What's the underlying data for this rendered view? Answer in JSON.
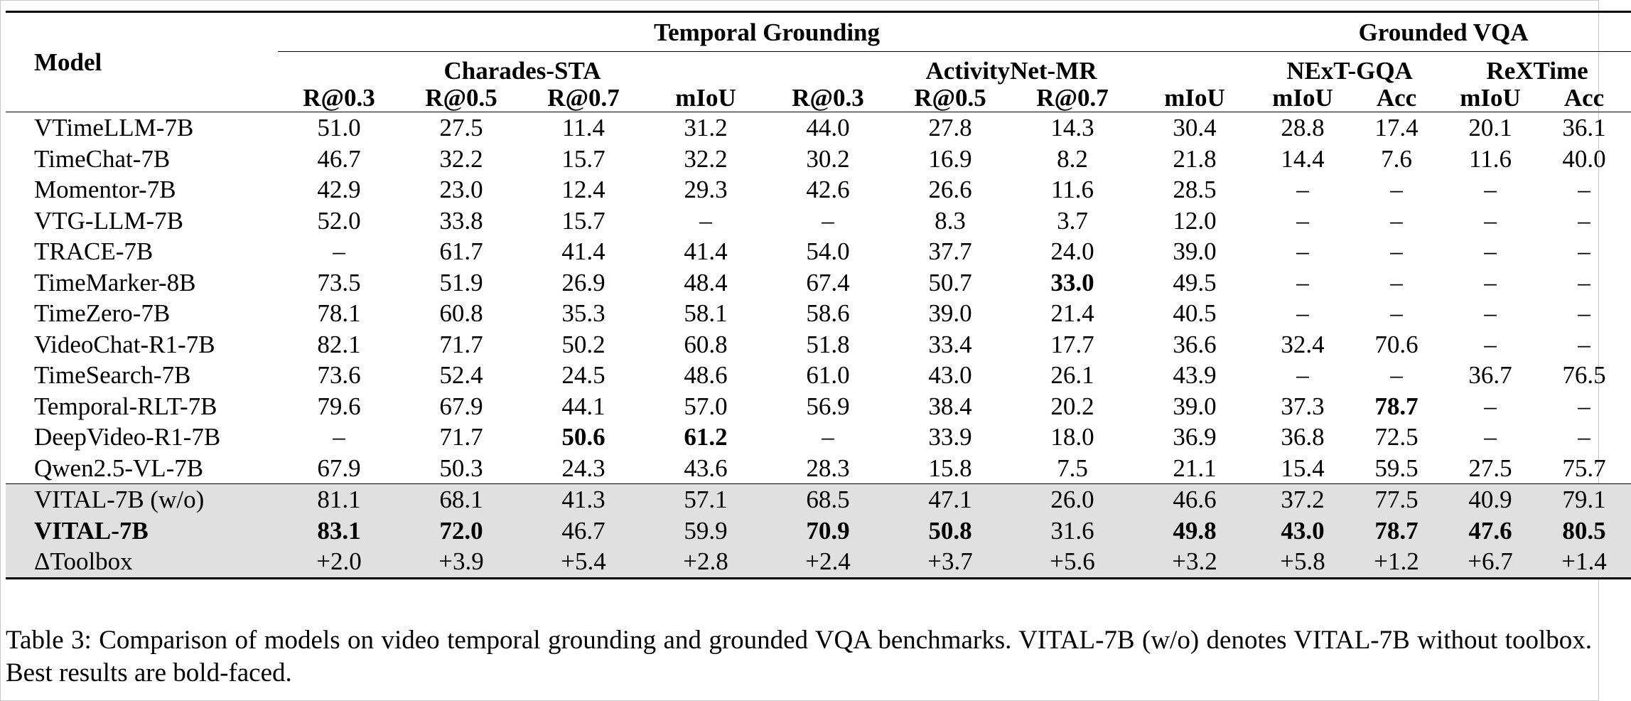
{
  "table": {
    "model_header": "Model",
    "groups": [
      {
        "label": "Temporal Grounding"
      },
      {
        "label": "Grounded VQA"
      }
    ],
    "datasets": [
      "Charades-STA",
      "ActivityNet-MR",
      "NExT-GQA",
      "ReXTime"
    ],
    "metrics": [
      "R@0.3",
      "R@0.5",
      "R@0.7",
      "mIoU",
      "R@0.3",
      "R@0.5",
      "R@0.7",
      "mIoU",
      "mIoU",
      "Acc",
      "mIoU",
      "Acc"
    ],
    "rows": [
      {
        "model": "VTimeLLM-7B",
        "values": [
          "51.0",
          "27.5",
          "11.4",
          "31.2",
          "44.0",
          "27.8",
          "14.3",
          "30.4",
          "28.8",
          "17.4",
          "20.1",
          "36.1"
        ]
      },
      {
        "model": "TimeChat-7B",
        "values": [
          "46.7",
          "32.2",
          "15.7",
          "32.2",
          "30.2",
          "16.9",
          "8.2",
          "21.8",
          "14.4",
          "7.6",
          "11.6",
          "40.0"
        ]
      },
      {
        "model": "Momentor-7B",
        "values": [
          "42.9",
          "23.0",
          "12.4",
          "29.3",
          "42.6",
          "26.6",
          "11.6",
          "28.5",
          "–",
          "–",
          "–",
          "–"
        ]
      },
      {
        "model": "VTG-LLM-7B",
        "values": [
          "52.0",
          "33.8",
          "15.7",
          "–",
          "–",
          "8.3",
          "3.7",
          "12.0",
          "–",
          "–",
          "–",
          "–"
        ]
      },
      {
        "model": "TRACE-7B",
        "values": [
          "–",
          "61.7",
          "41.4",
          "41.4",
          "54.0",
          "37.7",
          "24.0",
          "39.0",
          "–",
          "–",
          "–",
          "–"
        ]
      },
      {
        "model": "TimeMarker-8B",
        "values": [
          "73.5",
          "51.9",
          "26.9",
          "48.4",
          "67.4",
          "50.7",
          "33.0",
          "49.5",
          "–",
          "–",
          "–",
          "–"
        ]
      },
      {
        "model": "TimeZero-7B",
        "values": [
          "78.1",
          "60.8",
          "35.3",
          "58.1",
          "58.6",
          "39.0",
          "21.4",
          "40.5",
          "–",
          "–",
          "–",
          "–"
        ]
      },
      {
        "model": "VideoChat-R1-7B",
        "values": [
          "82.1",
          "71.7",
          "50.2",
          "60.8",
          "51.8",
          "33.4",
          "17.7",
          "36.6",
          "32.4",
          "70.6",
          "–",
          "–"
        ]
      },
      {
        "model": "TimeSearch-7B",
        "values": [
          "73.6",
          "52.4",
          "24.5",
          "48.6",
          "61.0",
          "43.0",
          "26.1",
          "43.9",
          "–",
          "–",
          "36.7",
          "76.5"
        ]
      },
      {
        "model": "Temporal-RLT-7B",
        "values": [
          "79.6",
          "67.9",
          "44.1",
          "57.0",
          "56.9",
          "38.4",
          "20.2",
          "39.0",
          "37.3",
          "78.7",
          "–",
          "–"
        ]
      },
      {
        "model": "DeepVideo-R1-7B",
        "values": [
          "–",
          "71.7",
          "50.6",
          "61.2",
          "–",
          "33.9",
          "18.0",
          "36.9",
          "36.8",
          "72.5",
          "–",
          "–"
        ]
      },
      {
        "model": "Qwen2.5-VL-7B",
        "values": [
          "67.9",
          "50.3",
          "24.3",
          "43.6",
          "28.3",
          "15.8",
          "7.5",
          "21.1",
          "15.4",
          "59.5",
          "27.5",
          "75.7"
        ]
      }
    ],
    "shaded_rows": [
      {
        "model": "VITAL-7B (w/o)",
        "values": [
          "81.1",
          "68.1",
          "41.3",
          "57.1",
          "68.5",
          "47.1",
          "26.0",
          "46.6",
          "37.2",
          "77.5",
          "40.9",
          "79.1"
        ]
      },
      {
        "model": "VITAL-7B",
        "values": [
          "83.1",
          "72.0",
          "46.7",
          "59.9",
          "70.9",
          "50.8",
          "31.6",
          "49.8",
          "43.0",
          "78.7",
          "47.6",
          "80.5"
        ]
      },
      {
        "model": "ΔToolbox",
        "values": [
          "+2.0",
          "+3.9",
          "+5.4",
          "+2.8",
          "+2.4",
          "+3.7",
          "+5.6",
          "+3.2",
          "+5.8",
          "+1.2",
          "+6.7",
          "+1.4"
        ]
      }
    ]
  },
  "caption": "Table 3: Comparison of models on video temporal grounding and grounded VQA benchmarks. VITAL-7B (w/o) denotes VITAL-7B without toolbox. Best results are bold-faced."
}
